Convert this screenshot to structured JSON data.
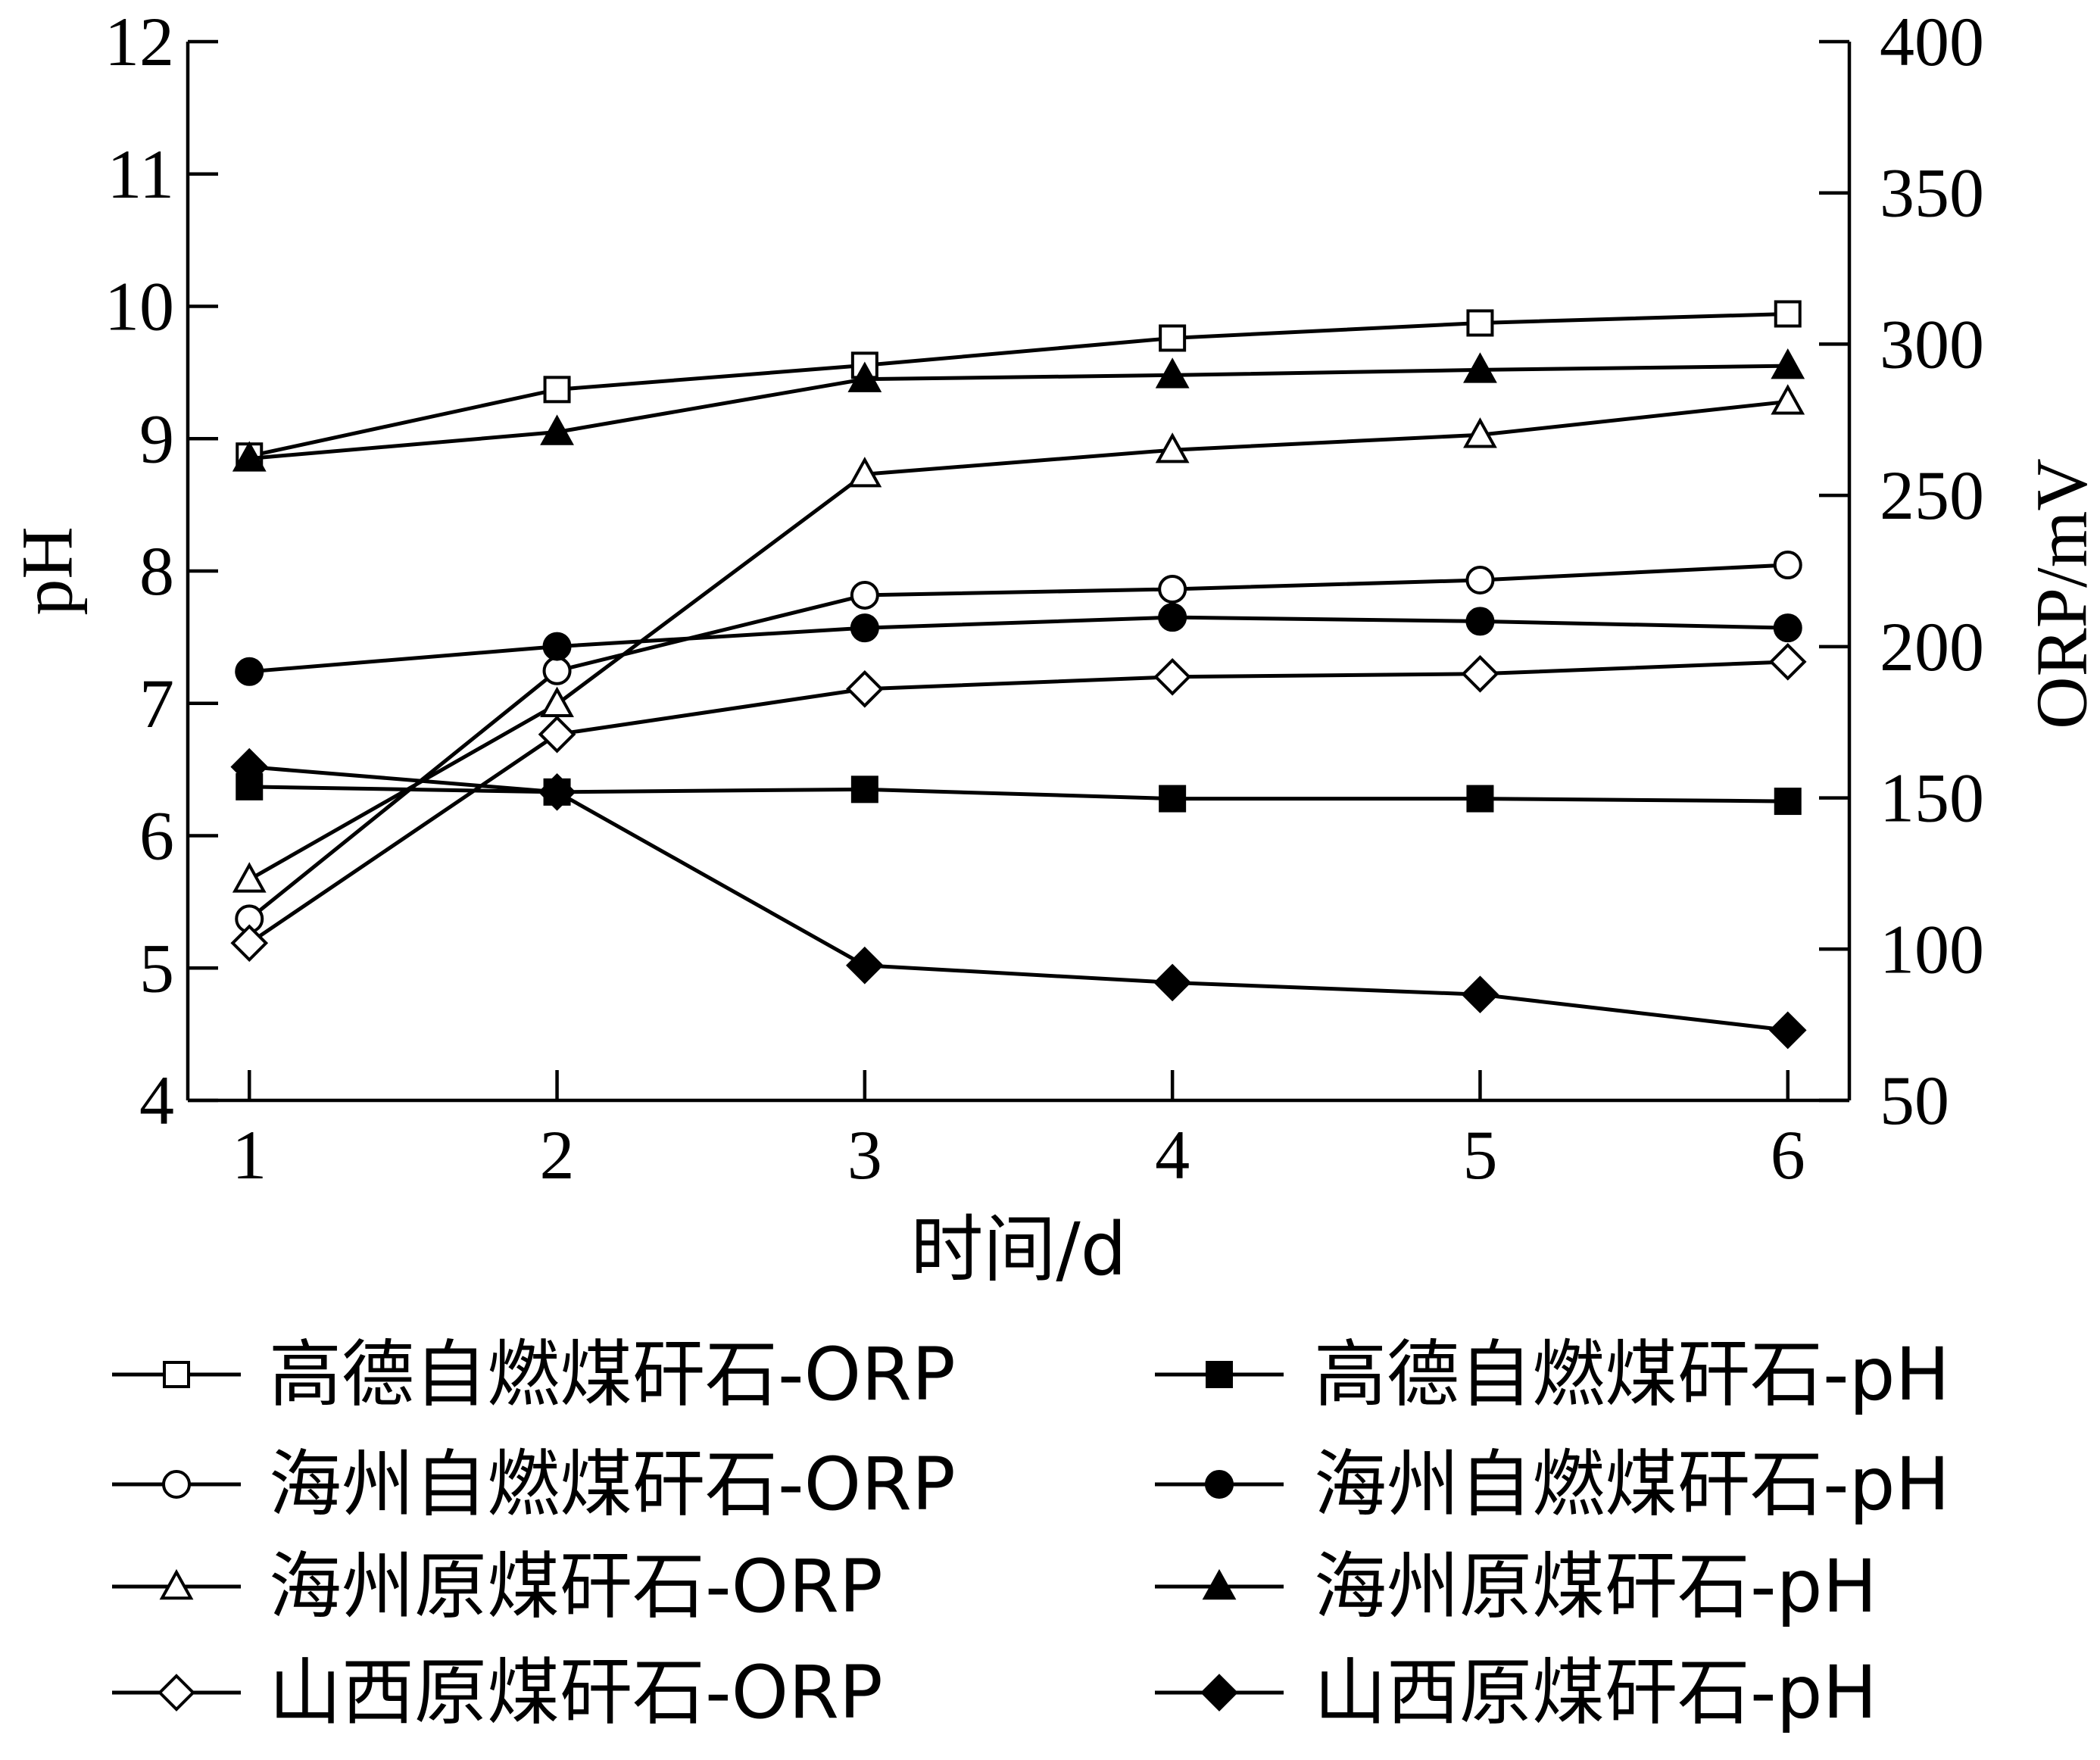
{
  "chart_data": {
    "type": "line",
    "x": [
      1,
      2,
      3,
      4,
      5,
      6
    ],
    "xlabel": "时间/d",
    "xlim": [
      0.8,
      6.2
    ],
    "x_ticks": [
      "1",
      "2",
      "3",
      "4",
      "5",
      "6"
    ],
    "ylabel_left": "pH",
    "ylim_left": [
      4,
      12
    ],
    "y_ticks_left": [
      "4",
      "5",
      "6",
      "7",
      "8",
      "9",
      "10",
      "11",
      "12"
    ],
    "ylabel_right": "ORP/mV",
    "ylim_right": [
      50,
      400
    ],
    "y_ticks_right": [
      "50",
      "100",
      "150",
      "200",
      "250",
      "300",
      "350",
      "400"
    ],
    "grid": false,
    "legend_placement": "bottom",
    "series": [
      {
        "name": "高德自燃煤矸石-ORP",
        "axis": "right",
        "marker": "square-open",
        "values": [
          263,
          285,
          293,
          302,
          307,
          310
        ]
      },
      {
        "name": "高德自燃煤矸石-pH",
        "axis": "left",
        "marker": "square-filled",
        "values": [
          6.37,
          6.33,
          6.35,
          6.28,
          6.28,
          6.26
        ]
      },
      {
        "name": "海州自燃煤矸石-ORP",
        "axis": "right",
        "marker": "circle-open",
        "values": [
          110,
          192,
          217,
          219,
          222,
          227
        ]
      },
      {
        "name": "海州自燃煤矸石-pH",
        "axis": "left",
        "marker": "circle-filled",
        "values": [
          7.24,
          7.43,
          7.57,
          7.65,
          7.62,
          7.57
        ]
      },
      {
        "name": "海州原煤矸石-ORP",
        "axis": "right",
        "marker": "triangle-open",
        "values": [
          123,
          181,
          257,
          265,
          270,
          281
        ]
      },
      {
        "name": "海州原煤矸石-pH",
        "axis": "left",
        "marker": "triangle-filled",
        "values": [
          8.85,
          9.05,
          9.45,
          9.48,
          9.52,
          9.55
        ]
      },
      {
        "name": "山西原煤矸石-ORP",
        "axis": "right",
        "marker": "diamond-open",
        "values": [
          102,
          171,
          186,
          190,
          191,
          195
        ]
      },
      {
        "name": "山西原煤矸石-pH",
        "axis": "left",
        "marker": "diamond-filled",
        "values": [
          6.52,
          6.33,
          5.02,
          4.89,
          4.8,
          4.53
        ]
      }
    ]
  },
  "colors": {
    "line": "#000000",
    "background": "#ffffff"
  }
}
